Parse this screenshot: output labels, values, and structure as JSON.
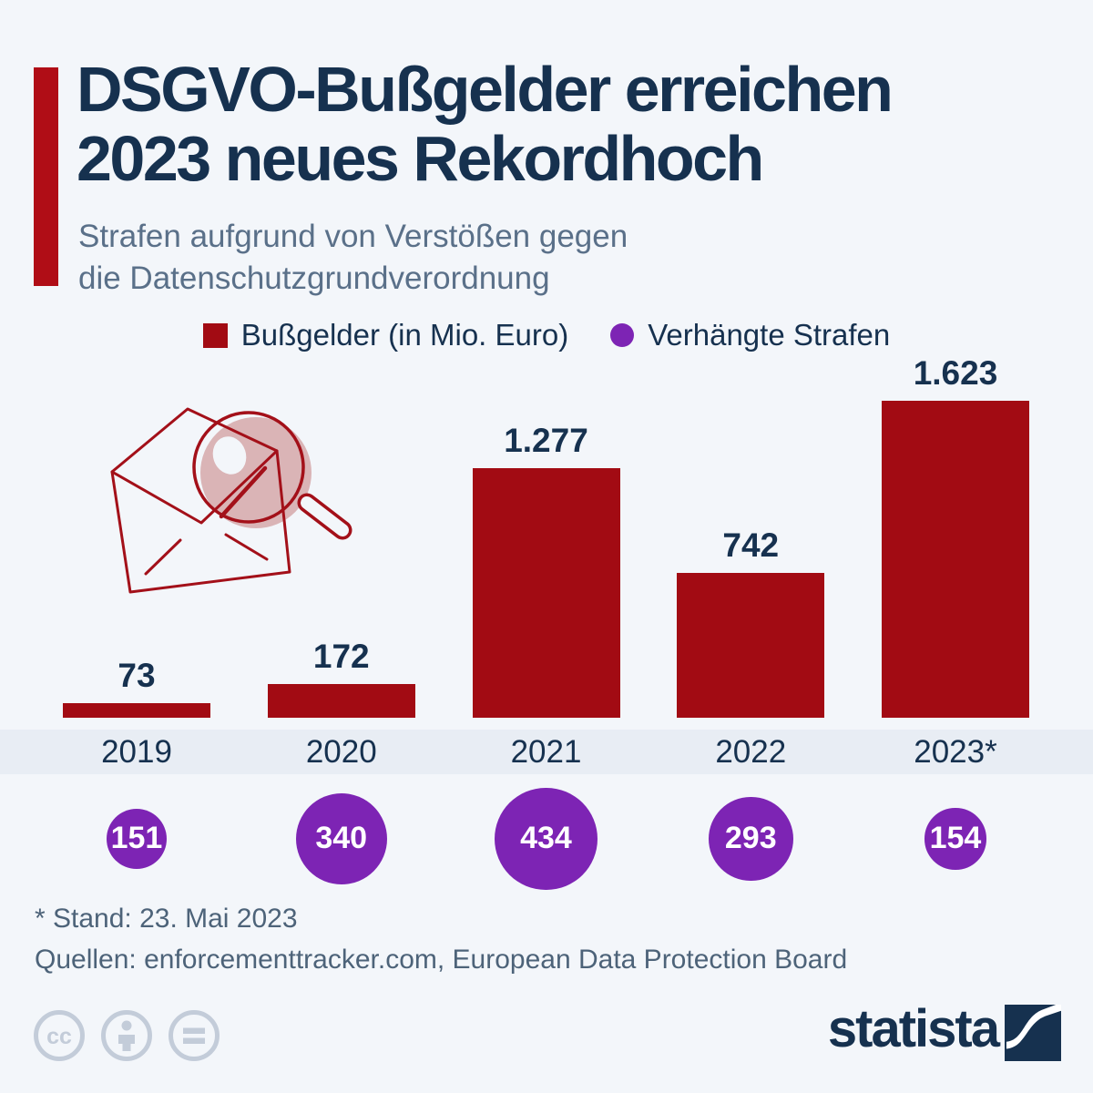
{
  "title": {
    "line1": "DSGVO-Bußgelder erreichen",
    "line2": "2023 neues Rekordhoch"
  },
  "subtitle": {
    "line1": "Strafen aufgrund von Verstößen gegen",
    "line2": "die Datenschutzgrundverordnung"
  },
  "legend": {
    "items": [
      {
        "label": "Bußgelder (in Mio. Euro)",
        "color": "#a20b13",
        "shape": "square"
      },
      {
        "label": "Verhängte Strafen",
        "color": "#7d24b4",
        "shape": "circle"
      }
    ]
  },
  "chart_data": {
    "type": "bar",
    "title": "DSGVO-Bußgelder erreichen 2023 neues Rekordhoch",
    "subtitle": "Strafen aufgrund von Verstößen gegen die Datenschutzgrundverordnung",
    "categories": [
      "2019",
      "2020",
      "2021",
      "2022",
      "2023*"
    ],
    "series": [
      {
        "name": "Bußgelder (in Mio. Euro)",
        "type": "bar",
        "color": "#a20b13",
        "values": [
          73,
          172,
          1277,
          742,
          1623
        ],
        "value_labels": [
          "73",
          "172",
          "1.277",
          "742",
          "1.623"
        ]
      },
      {
        "name": "Verhängte Strafen",
        "type": "sized-circle",
        "color": "#7d24b4",
        "values": [
          151,
          340,
          434,
          293,
          154
        ],
        "value_labels": [
          "151",
          "340",
          "434",
          "293",
          "154"
        ]
      }
    ],
    "ylim": [
      0,
      1700
    ],
    "grid": false,
    "legend_position": "top"
  },
  "footnotes": {
    "stand": "* Stand: 23. Mai 2023",
    "quellen": "Quellen: enforcementtracker.com, European Data Protection Board"
  },
  "branding": {
    "logo_text": "statista",
    "license_icons": [
      "cc-icon",
      "attribution-person-icon",
      "equals-icon"
    ]
  },
  "colors": {
    "background": "#f3f6fa",
    "band": "#e8edf4",
    "accent_red": "#b00d16",
    "bar_red": "#a20b13",
    "navy": "#16314f",
    "subtitle_gray": "#5a7089",
    "footnote_gray": "#4d6379",
    "purple": "#7d24b4",
    "license_gray": "#c3ccd9",
    "lens_pink": "#dab4b6"
  }
}
